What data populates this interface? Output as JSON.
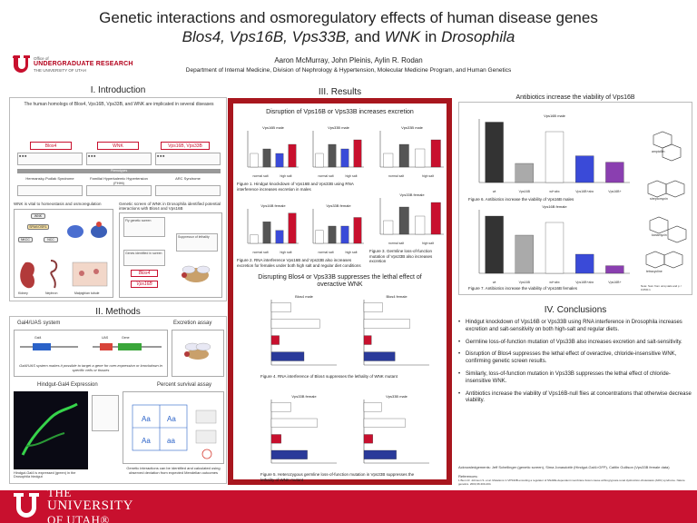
{
  "header": {
    "title_line1": "Genetic interactions and osmoregulatory effects of human disease genes",
    "title_genes": "Blos4, Vps16B, Vps33B,",
    "title_and": "and",
    "title_wnk": "WNK",
    "title_in": "in",
    "title_organism": "Drosophila",
    "authors": "Aaron McMurray, John Pleinis, Aylin R. Rodan",
    "affiliation": "Department of Internal Medicine, Division of Nephrology & Hypertension, Molecular Medicine Program, and Human Genetics",
    "ur_office": "Office of",
    "ur_name": "UNDERGRADUATE RESEARCH",
    "ur_sub": "THE UNIVERSITY OF UTAH"
  },
  "intro": {
    "title": "I. Introduction",
    "lead": "The human homologs of Blos4, Vps16B, Vps33B, and WNK are implicated in several diseases",
    "genes": [
      "Blos4",
      "WNK",
      "Vps16B, Vps33B"
    ],
    "bar_label": "Phenotypes",
    "syndromes": [
      "Hermansky-Pudlak Syndrome",
      "Familial Hyperkalemic Hypertension (FHHt)",
      "ARC Syndrome"
    ],
    "wnk_heading": "WNK is vital to homeostasis and osmoregulation",
    "screen_heading": "Genetic screen of WNK in Drosophila identified potential interactions with Blos4 and Vps16B",
    "screen_steps": [
      "Fly genetic screen",
      "Suppressor of lethality",
      "Genes identified in screen"
    ],
    "screen_genes": [
      "Blos4",
      "Vps16B"
    ],
    "tissue_labels": [
      "Kidney",
      "Nephron",
      "Renal tubule",
      "Malpighian tubule"
    ],
    "wnk_nodes": [
      "WNK",
      "SPAK/OSR1",
      "NKCC",
      "NCC"
    ]
  },
  "methods": {
    "title": "II. Methods",
    "gal4_title": "Gal4/UAS system",
    "gal4_text": "Gal4/UAS system makes it possible to target a gene for over-expression or knockdown in specific cells or tissues",
    "hindgut_title": "Hindgut-Gal4 Expression",
    "hindgut_caption": "Hindgut-Gal4 is expressed (green) in the Drosophila hindgut",
    "excretion_title": "Excretion assay",
    "survival_title": "Percent survival assay",
    "survival_text": "Genetic interactions can be identified and calculated using observed deviation from expected Mendelian outcomes",
    "gene_labels": [
      "Gal4",
      "UAS",
      "Gene"
    ]
  },
  "results": {
    "title": "III. Results",
    "excretion_title": "Disruption of Vps16B or Vps33B increases excretion",
    "fig1_caption": "Figure 1. Hindgut knockdown of Vps16B and Vps33B using RNA interference increases excretion in males",
    "fig2_caption": "Figure 2. RNA interference Vps16B and Vps33B also increases excretion for females under both high salt and regular diet conditions",
    "fig3_caption": "Figure 3. Germline loss-of-function mutation of Vps33B also increases excretion",
    "wnk_title": "Disrupting Blos4 or Vps33B suppresses the lethal effect of overactive WNK",
    "fig4_caption": "Figure 4. RNA interference of Blos4 suppresses the lethality of WNK mutant",
    "fig5_caption": "Figure 5. Heterozygous germline loss-of-function mutation in Vps33B suppresses the lethality of WNK mutant",
    "panel_labels": [
      "Vps16B male",
      "Vps33B male",
      "Vps16B female",
      "Vps33B female",
      "Vps33B male",
      "Vps33B female",
      "Blos4 male",
      "Blos4 female",
      "Vps33B female",
      "Vps33B male"
    ],
    "x_labels": [
      "normal salt",
      "high salt"
    ],
    "y_label": "Excretion (a.u.)",
    "survival_axis": "% viability",
    "fig4_values": [
      30,
      74,
      12,
      50
    ],
    "fig5_values": [
      30,
      70,
      15,
      55
    ],
    "bar_labels": [
      "Control",
      "RNAi",
      "WNK CA",
      "WNK CA+RNAi"
    ]
  },
  "antibiotics": {
    "title": "Antibiotics increase the viability of Vps16B",
    "fig6_caption": "Figure 6. Antibiotics increase the viability of Vps16B males",
    "fig7_caption": "Figure 7. Antibiotics increase the viability of Vps16B females",
    "male_label": "Vps16B male",
    "female_label": "Vps16B female",
    "categories": [
      "wt",
      "Vps16B",
      "wt+abx",
      "Vps16B+abx",
      "Vps16B+"
    ],
    "male_values": [
      95,
      30,
      80,
      42,
      32
    ],
    "female_values": [
      90,
      60,
      80,
      30,
      12
    ],
    "y_label": "% viability",
    "y_ticks": [
      "0",
      "20",
      "40",
      "60",
      "80",
      "100"
    ],
    "molecule_labels": [
      "ampicillin",
      "streptomycin",
      "kanamycin",
      "tetracycline"
    ],
    "stats_note": "Note: Sum from uniq vials and p < 0.05/0.1"
  },
  "conclusions": {
    "title": "IV. Conclusions",
    "items": [
      "Hindgut knockdown of Vps16B or Vps33B using RNA interference in Drosophila increases excretion and salt-sensitivity on both high-salt and regular diets.",
      "Germline loss-of-function mutation of Vps33B also increases excretion and salt-sensitivity.",
      "Disruption of Blos4 suppresses the lethal effect of overactive, chloride-insensitive WNK, confirming genetic screen results.",
      "Similarly, loss-of-function mutation in Vps33B suppresses the lethal effect of chloride-insensitive WNK.",
      "Antibiotics increase the viability of Vps16B-null flies at concentrations that otherwise decrease viability."
    ],
    "acknowledgements": "Acknowledgements: Jeff Schellinger (genetic screen), Sima Jonasdottir (Hindgut-Gal4>GFP), Caitlin Gullison (Vps33B female data)",
    "references_label": "References:",
    "references": "1 Bunn R. Johnson S. et al. Mutations in VPS33B encoding a regulator of SNARE-dependent membrane fusion cause arthrogryposis-renal dysfunction-cholestasis (ARC) syndrome. Nature genetics. 2004;36:400-404."
  },
  "footer": {
    "line1": "THE",
    "line2": "UNIVERSITY",
    "line3": "OF UTAH®"
  },
  "colors": {
    "utah_red": "#c8102e",
    "results_border": "#a8161e",
    "bar_blue": "#3a4ad8",
    "bar_red": "#c8102e",
    "bar_dark": "#333333",
    "bar_grey": "#aaaaaa",
    "bar_purple": "#8a3fb0"
  }
}
